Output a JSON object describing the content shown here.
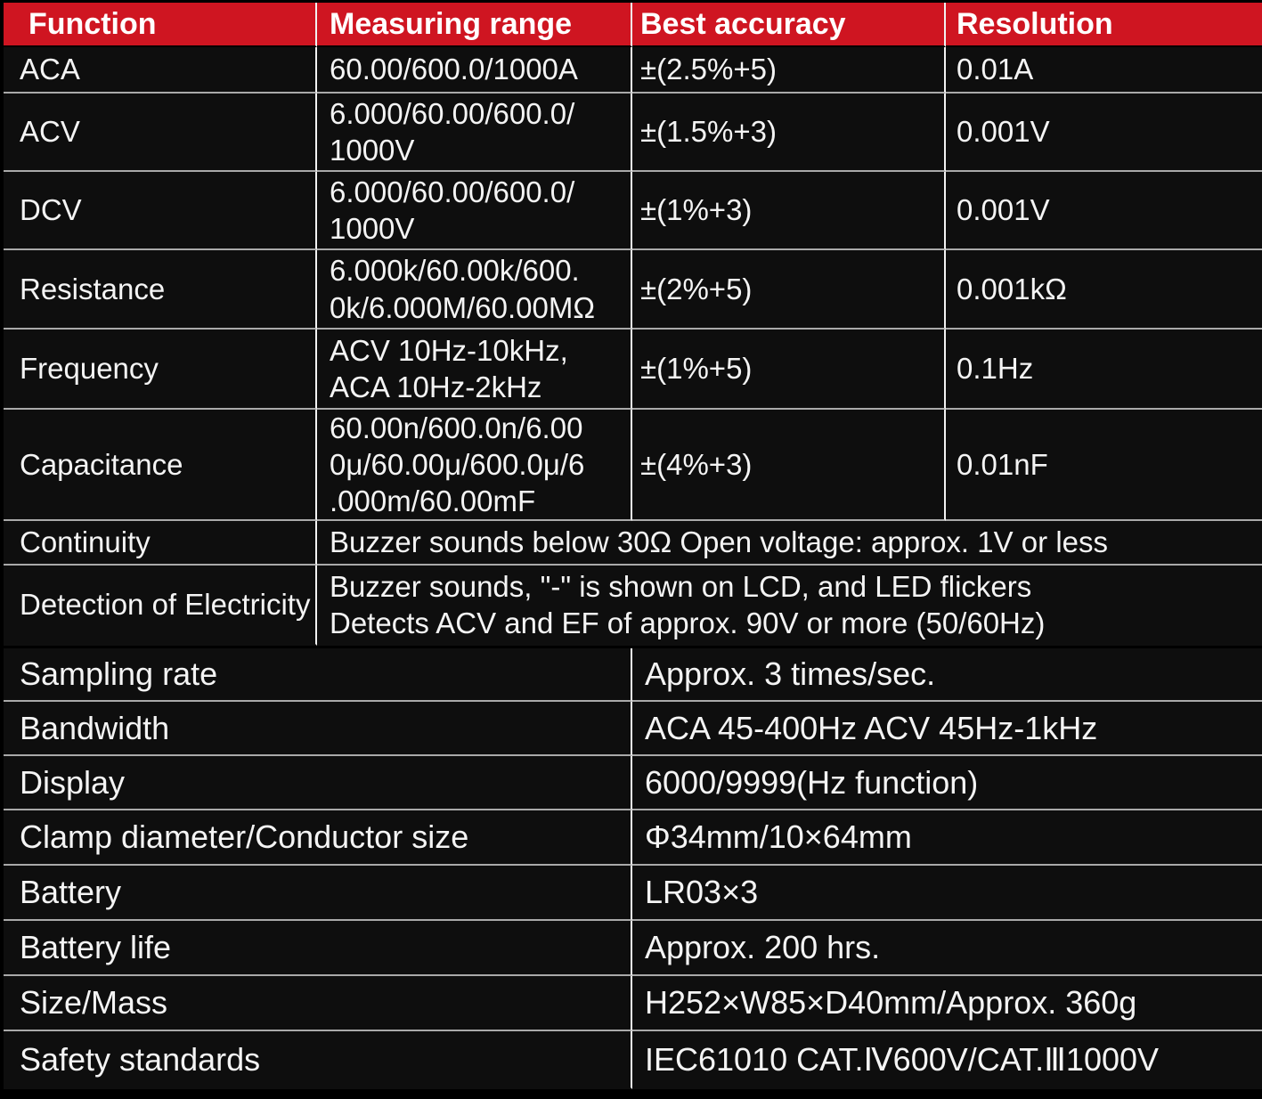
{
  "colors": {
    "header_bg": "#cf1521",
    "header_text": "#ffffff",
    "row_bg": "#0e0e0e",
    "text": "#f4f4f4",
    "divider_v": "#f2f2f2",
    "divider_h": "#a9a9a9"
  },
  "spec_table": {
    "headers": {
      "function": "Function",
      "range": "Measuring range",
      "accuracy": "Best accuracy",
      "resolution": "Resolution"
    },
    "rows": [
      {
        "function": "ACA",
        "range": "60.00/600.0/1000A",
        "accuracy": "±(2.5%+5)",
        "resolution": "0.01A"
      },
      {
        "function": "ACV",
        "range": "6.000/60.00/600.0/\n1000V",
        "accuracy": "±(1.5%+3)",
        "resolution": "0.001V"
      },
      {
        "function": "DCV",
        "range": "6.000/60.00/600.0/\n1000V",
        "accuracy": "±(1%+3)",
        "resolution": "0.001V"
      },
      {
        "function": "Resistance",
        "range": "6.000k/60.00k/600.\n0k/6.000M/60.00MΩ",
        "accuracy": "±(2%+5)",
        "resolution": "0.001kΩ"
      },
      {
        "function": "Frequency",
        "range": "ACV 10Hz-10kHz,\nACA 10Hz-2kHz",
        "accuracy": "±(1%+5)",
        "resolution": "0.1Hz"
      },
      {
        "function": "Capacitance",
        "range": "60.00n/600.0n/6.00\n0μ/60.00μ/600.0μ/6\n.000m/60.00mF",
        "accuracy": "±(4%+3)",
        "resolution": "0.01nF"
      }
    ],
    "merged_rows": [
      {
        "function": "Continuity",
        "value": "Buzzer sounds below 30Ω Open voltage: approx. 1V or less"
      },
      {
        "function": "Detection of Electricity",
        "value": "Buzzer sounds, \"-\" is shown on LCD, and LED flickers\nDetects ACV and EF of approx. 90V or more (50/60Hz)"
      }
    ]
  },
  "info_table": {
    "rows": [
      {
        "label": "Sampling rate",
        "value": "Approx. 3 times/sec."
      },
      {
        "label": "Bandwidth",
        "value": "ACA 45-400Hz ACV 45Hz-1kHz"
      },
      {
        "label": "Display",
        "value": "6000/9999(Hz function)"
      },
      {
        "label": "Clamp diameter/Conductor size",
        "value": "Φ34mm/10×64mm"
      },
      {
        "label": "Battery",
        "value": "LR03×3"
      },
      {
        "label": "Battery life",
        "value": "Approx. 200 hrs."
      },
      {
        "label": "Size/Mass",
        "value": "H252×W85×D40mm/Approx. 360g"
      },
      {
        "label": "Safety standards",
        "value": "IEC61010 CAT.Ⅳ600V/CAT.Ⅲ1000V"
      }
    ]
  }
}
